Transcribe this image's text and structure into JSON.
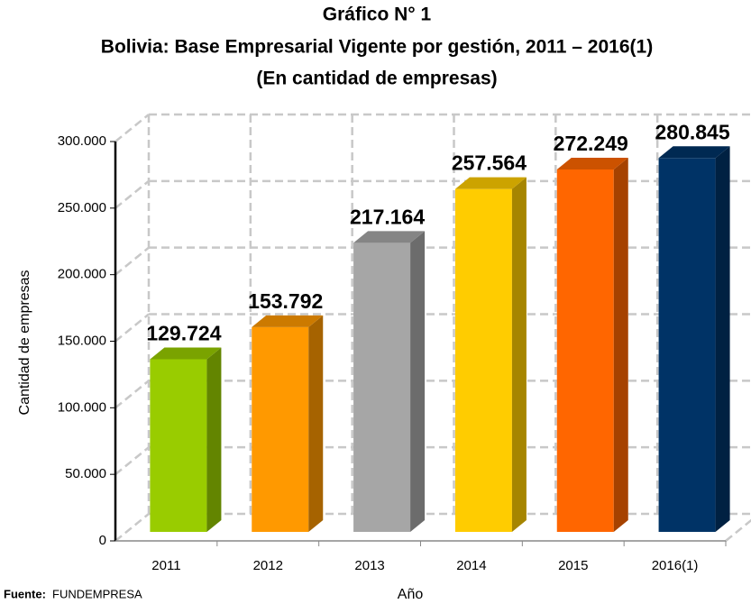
{
  "chart_data": {
    "type": "bar3d",
    "title_lines": [
      "Gráfico N° 1",
      "Bolivia: Base Empresarial Vigente por gestión, 2011 – 2016(1)",
      "(En cantidad de empresas)"
    ],
    "xlabel": "Año",
    "ylabel": "Cantidad de empresas",
    "source_label": "Fuente:",
    "source": "FUNDEMPRESA",
    "categories": [
      "2011",
      "2012",
      "2013",
      "2014",
      "2015",
      "2016(1)"
    ],
    "values": [
      129724,
      153792,
      217164,
      257564,
      272249,
      280845
    ],
    "value_labels": [
      "129.724",
      "153.792",
      "217.164",
      "257.564",
      "272.249",
      "280.845"
    ],
    "colors": [
      "#99cc00",
      "#ff9900",
      "#a6a6a6",
      "#ffcc00",
      "#ff6600",
      "#003366"
    ],
    "ylim": [
      0,
      300000
    ],
    "yticks": [
      0,
      {
        "value": 50000,
        "label": "50.000"
      },
      {
        "value": 100000,
        "label": "100.000"
      },
      {
        "value": 150000,
        "label": "150.000"
      },
      {
        "value": 200000,
        "label": "200.000"
      },
      {
        "value": 250000,
        "label": "250.000"
      },
      {
        "value": 300000,
        "label": "300.000"
      }
    ],
    "grid": true
  }
}
